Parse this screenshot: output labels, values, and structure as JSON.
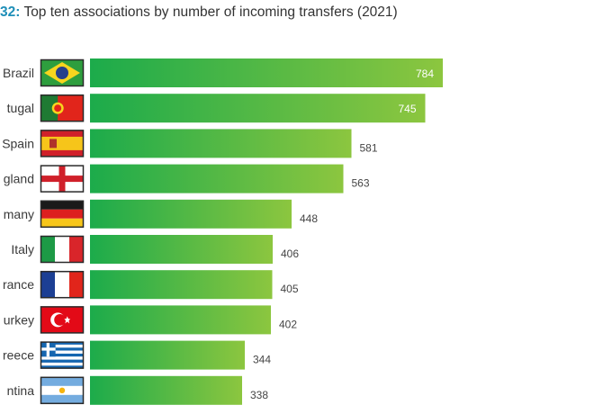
{
  "title": {
    "prefix": "32:",
    "text": "Top ten associations by number of incoming transfers (2021)"
  },
  "colors": {
    "bar_start": "#1cab4b",
    "bar_end": "#8cc63f",
    "title_prefix": "#1f8fb8",
    "label_inside": "#ffffff",
    "label_outside": "#444444"
  },
  "chart_data": {
    "type": "bar",
    "orientation": "horizontal",
    "title": "Top ten associations by number of incoming transfers (2021)",
    "categories": [
      "Brazil",
      "Portugal",
      "Spain",
      "England",
      "Germany",
      "Italy",
      "France",
      "Turkey",
      "Greece",
      "Argentina"
    ],
    "visible_category_labels": [
      "Brazil",
      "tugal",
      "Spain",
      "gland",
      "many",
      "Italy",
      "rance",
      "urkey",
      "reece",
      "ntina"
    ],
    "flags": [
      "brazil-flag-icon",
      "portugal-flag-icon",
      "spain-flag-icon",
      "england-flag-icon",
      "germany-flag-icon",
      "italy-flag-icon",
      "france-flag-icon",
      "turkey-flag-icon",
      "greece-flag-icon",
      "argentina-flag-icon"
    ],
    "values": [
      784,
      745,
      581,
      563,
      448,
      406,
      405,
      402,
      344,
      338
    ],
    "xlim": [
      0,
      800
    ],
    "grid": false,
    "legend": "none"
  }
}
